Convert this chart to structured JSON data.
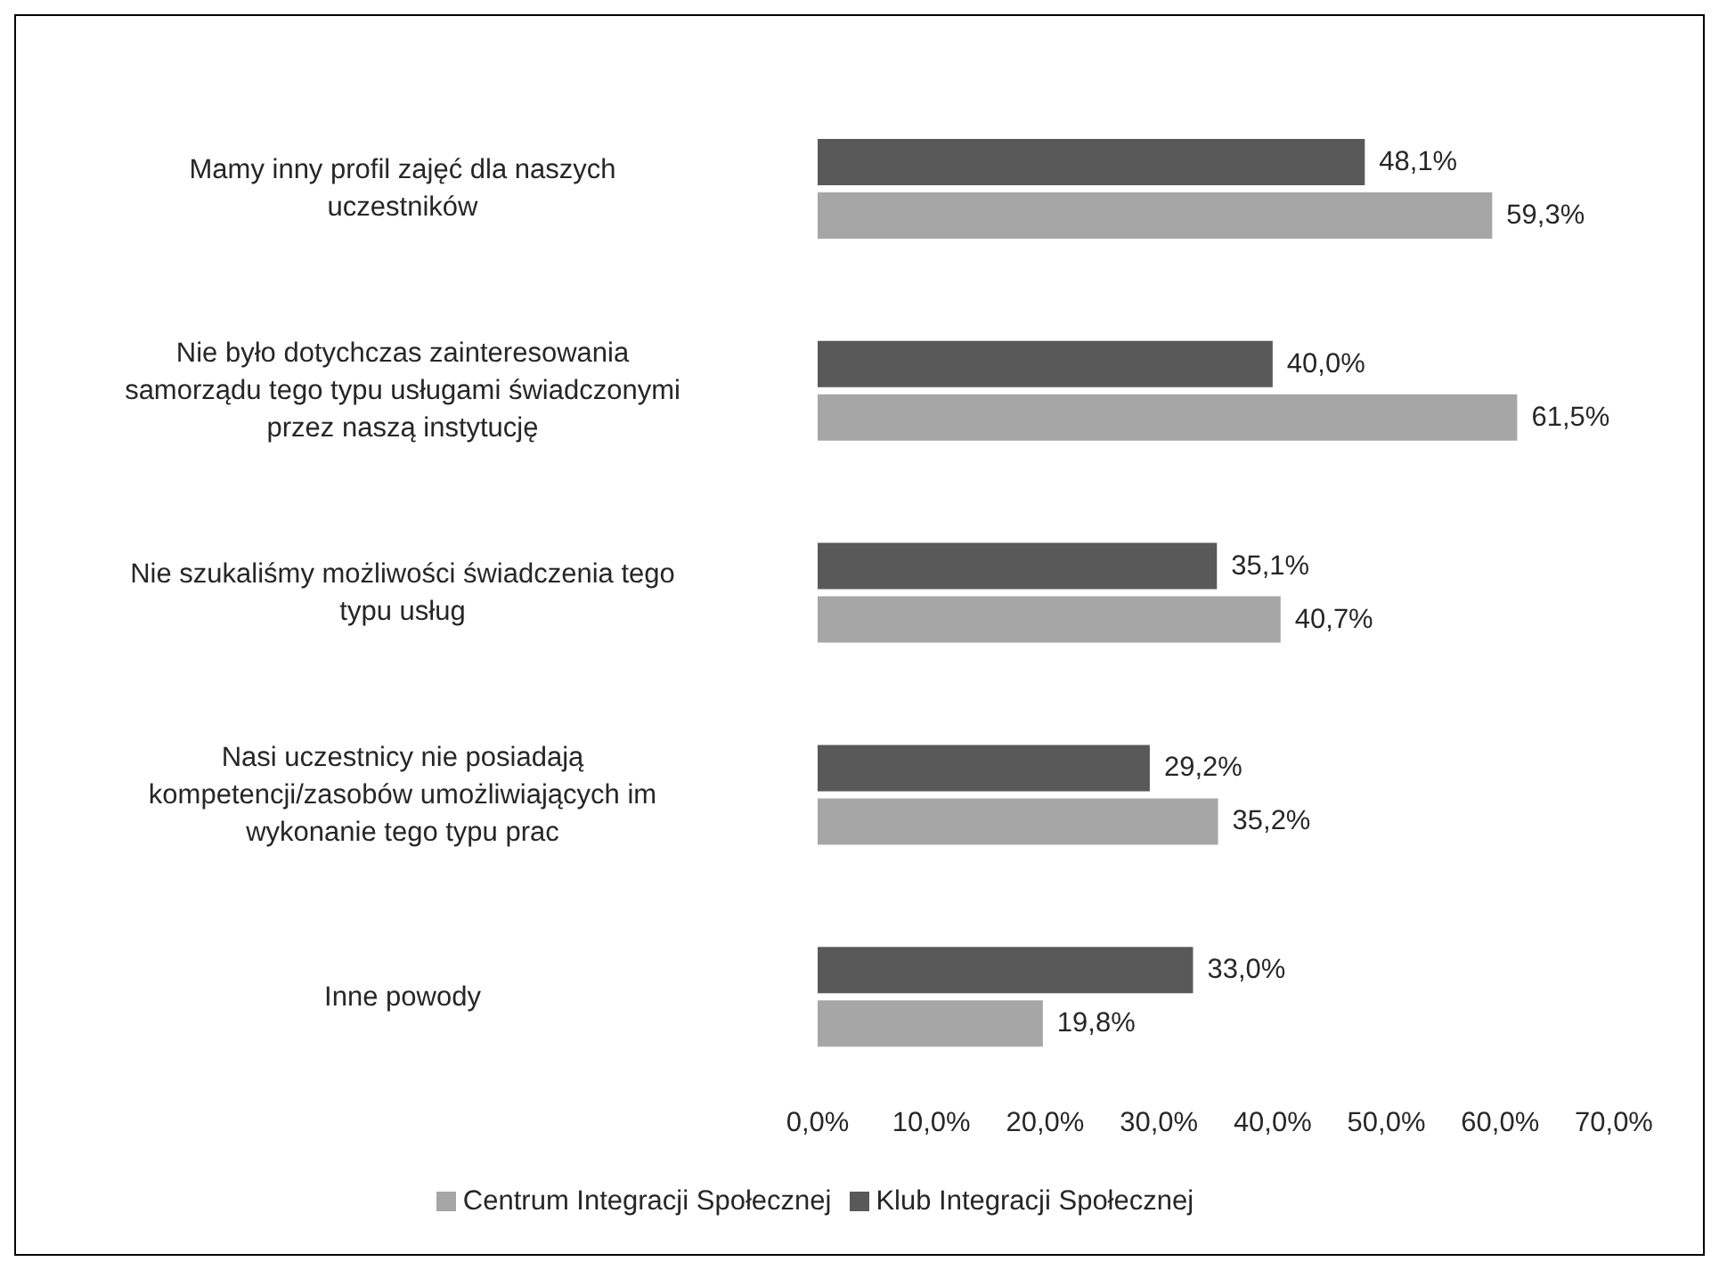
{
  "chart_data": {
    "type": "bar",
    "orientation": "horizontal",
    "categories": [
      "Mamy inny profil zajęć dla naszych uczestników",
      "Nie było dotychczas zainteresowania samorządu tego typu usługami świadczonymi przez naszą instytucję",
      "Nie szukaliśmy możliwości świadczenia tego typu usług",
      "Nasi uczestnicy nie posiadają kompetencji/zasobów umożliwiających im wykonanie tego typu prac",
      "Inne powody"
    ],
    "series": [
      {
        "name": "Klub Integracji Społecznej",
        "color": "#595959",
        "values": [
          48.1,
          40.0,
          35.1,
          29.2,
          33.0
        ],
        "value_labels": [
          "48,1%",
          "40,0%",
          "35,1%",
          "29,2%",
          "33,0%"
        ]
      },
      {
        "name": "Centrum Integracji Społecznej",
        "color": "#a6a6a6",
        "values": [
          59.3,
          61.5,
          40.7,
          35.2,
          19.8
        ],
        "value_labels": [
          "59,3%",
          "61,5%",
          "40,7%",
          "35,2%",
          "19,8%"
        ]
      }
    ],
    "xlim": [
      0,
      70
    ],
    "xticks": [
      {
        "value": 0,
        "label": "0,0%"
      },
      {
        "value": 10,
        "label": "10,0%"
      },
      {
        "value": 20,
        "label": "20,0%"
      },
      {
        "value": 30,
        "label": "30,0%"
      },
      {
        "value": 40,
        "label": "40,0%"
      },
      {
        "value": 50,
        "label": "50,0%"
      },
      {
        "value": 60,
        "label": "60,0%"
      },
      {
        "value": 70,
        "label": "70,0%"
      }
    ],
    "grid": false,
    "legend": "bottom"
  }
}
